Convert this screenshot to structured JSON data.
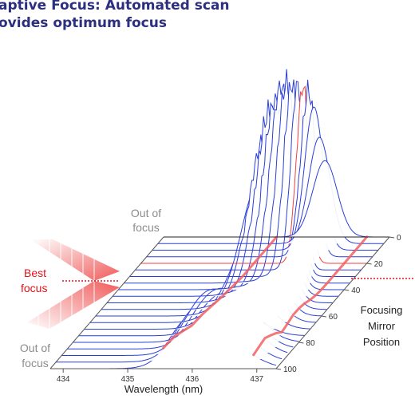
{
  "headline": {
    "line1": "aptive Focus: Automated scan",
    "line2": "ovides optimum focus"
  },
  "chart_data": {
    "type": "line",
    "title": "",
    "xlabel": "Wavelength (nm)",
    "ylabel": "Focusing Mirror Position",
    "x_ticks": [
      "434",
      "435",
      "436",
      "437"
    ],
    "xlim": [
      433.8,
      437.3
    ],
    "y_ticks": [
      "0",
      "20",
      "40",
      "60",
      "80",
      "100"
    ],
    "ylim": [
      0,
      100
    ],
    "positions": [
      0,
      5,
      10,
      15,
      20,
      25,
      30,
      35,
      40,
      45,
      50,
      55,
      60,
      65,
      70,
      75,
      80,
      85,
      90,
      95,
      100
    ],
    "peak_wavelength_start": 436.3,
    "peak_wavelength_end": 436.35,
    "peak_heights": [
      0.33,
      0.46,
      0.62,
      0.77,
      0.83,
      0.87,
      0.9,
      0.93,
      0.95,
      0.91,
      0.88,
      0.78,
      0.55,
      0.36,
      0.18,
      0.09,
      0.18,
      0.22,
      0.24,
      0.19,
      0.15
    ],
    "best_focus_position": 22,
    "annotations": {
      "out_of_focus_top_1": "Out of",
      "out_of_focus_top_2": "focus",
      "best_focus_1": "Best",
      "best_focus_2": "focus",
      "out_of_focus_bottom_1": "Out of",
      "out_of_focus_bottom_2": "focus",
      "mirror_1": "Focusing",
      "mirror_2": "Mirror",
      "mirror_3": "Position"
    },
    "colors": {
      "trace": "#2b3fd8",
      "best_trace": "#f04040",
      "ridge": "#f26060",
      "text_grey": "#8c8c8c",
      "text_red": "#e0121b",
      "axes": "#555555"
    }
  }
}
